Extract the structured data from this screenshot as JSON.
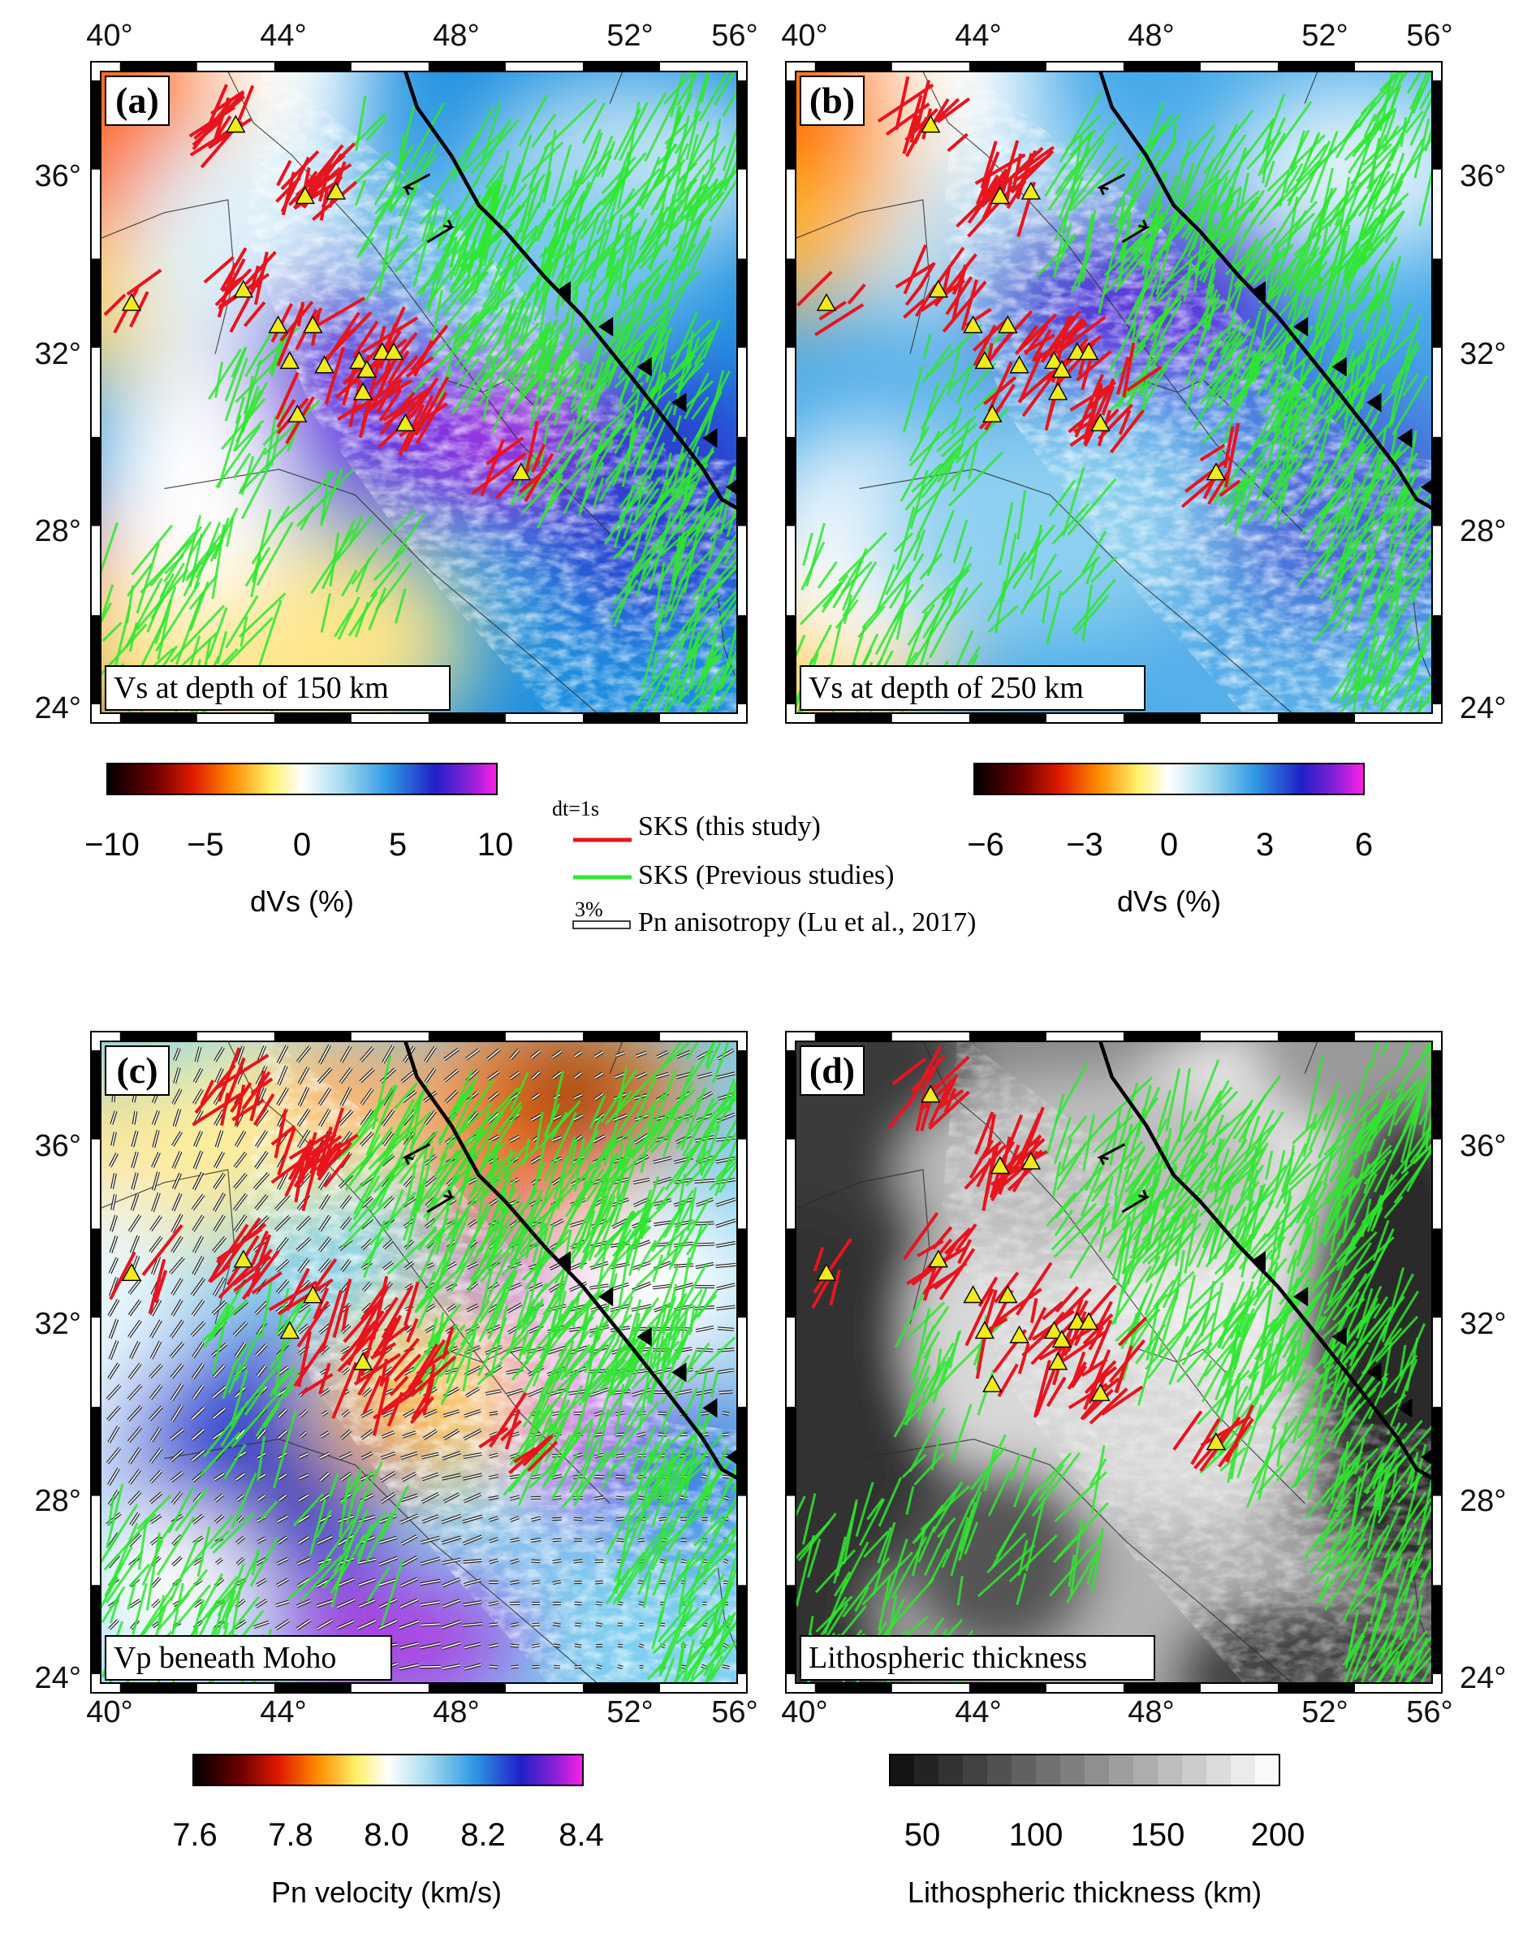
{
  "lon_ticks": [
    "40°",
    "44°",
    "48°",
    "52°",
    "56°"
  ],
  "lat_ticks": [
    "24°",
    "28°",
    "32°",
    "36°"
  ],
  "lon_range": [
    39.5,
    56.0
  ],
  "lat_range": [
    23.8,
    38.2
  ],
  "panels": [
    {
      "id": "a",
      "letter": "(a)",
      "title": "Vs at depth of 150 km",
      "type": "vs150"
    },
    {
      "id": "b",
      "letter": "(b)",
      "title": "Vs at depth of 250 km",
      "type": "vs250"
    },
    {
      "id": "c",
      "letter": "(c)",
      "title": "Vp beneath Moho",
      "type": "pn"
    },
    {
      "id": "d",
      "letter": "(d)",
      "title": "Lithospheric thickness",
      "type": "litho"
    }
  ],
  "colorbars": [
    {
      "id": "cb-a",
      "ticks": [
        "−10",
        "−5",
        "0",
        "5",
        "10"
      ],
      "label": "dVs (%)",
      "scale": "seismic"
    },
    {
      "id": "cb-b",
      "ticks": [
        "−6",
        "−3",
        "0",
        "3",
        "6"
      ],
      "label": "dVs (%)",
      "scale": "seismic"
    },
    {
      "id": "cb-c",
      "ticks": [
        "7.6",
        "7.8",
        "8.0",
        "8.2",
        "8.4"
      ],
      "label": "Pn velocity (km/s)",
      "scale": "seismic"
    },
    {
      "id": "cb-d",
      "ticks": [
        "50",
        "100",
        "150",
        "200"
      ],
      "label": "Lithospheric thickness (km)",
      "scale": "gray"
    }
  ],
  "legend": {
    "dt_label": "dt=1s",
    "sks_this": "SKS (this study)",
    "sks_prev": "SKS (Previous studies)",
    "pn_scale": "3%",
    "pn_label": "Pn anisotropy (Lu et al., 2017)"
  },
  "colors": {
    "sks_this": "#e8141e",
    "sks_prev": "#2ee82e",
    "station": "#f2ea1a",
    "fault": "#000000"
  },
  "stations": [
    [
      43.0,
      37.0
    ],
    [
      40.3,
      33.0
    ],
    [
      43.2,
      33.3
    ],
    [
      44.1,
      32.5
    ],
    [
      45.0,
      32.5
    ],
    [
      45.3,
      31.6
    ],
    [
      44.4,
      31.7
    ],
    [
      46.2,
      31.7
    ],
    [
      46.4,
      31.5
    ],
    [
      46.8,
      31.9
    ],
    [
      47.1,
      31.9
    ],
    [
      46.3,
      31.0
    ],
    [
      44.6,
      30.5
    ],
    [
      47.4,
      30.3
    ],
    [
      50.4,
      29.2
    ],
    [
      44.8,
      35.4
    ],
    [
      45.6,
      35.5
    ]
  ],
  "fault_trace": [
    [
      47.4,
      38.2
    ],
    [
      47.7,
      37.4
    ],
    [
      48.6,
      36.3
    ],
    [
      49.3,
      35.2
    ],
    [
      50.0,
      34.6
    ],
    [
      51.0,
      33.6
    ],
    [
      52.0,
      32.7
    ],
    [
      53.3,
      31.3
    ],
    [
      54.3,
      30.2
    ],
    [
      55.1,
      29.3
    ],
    [
      55.6,
      28.6
    ],
    [
      56.0,
      28.4
    ]
  ],
  "thrust_teeth": [
    [
      51.6,
      33.2
    ],
    [
      52.7,
      32.4
    ],
    [
      53.7,
      31.5
    ],
    [
      54.6,
      30.7
    ],
    [
      55.4,
      29.9
    ],
    [
      56.0,
      28.8
    ]
  ]
}
